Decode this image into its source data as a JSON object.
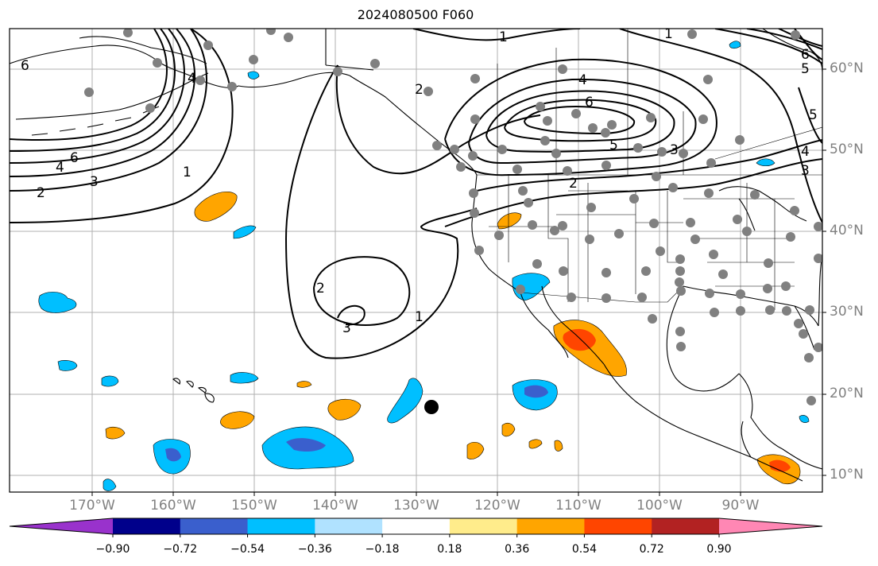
{
  "title": "2024080500 F060",
  "lat_labels": [
    "60°N",
    "50°N",
    "40°N",
    "30°N",
    "20°N",
    "10°N"
  ],
  "lon_labels": [
    "170°W",
    "160°W",
    "150°W",
    "140°W",
    "130°W",
    "120°W",
    "110°W",
    "100°W",
    "90°W"
  ],
  "contour_labels": [
    "1",
    "2",
    "3",
    "4",
    "5",
    "6"
  ],
  "colorbar": {
    "ticks": [
      "−0.90",
      "−0.72",
      "−0.54",
      "−0.36",
      "−0.18",
      "0.18",
      "0.36",
      "0.54",
      "0.72",
      "0.90"
    ],
    "colors": [
      "#9932CC",
      "#00008B",
      "#3A5FCD",
      "#00BFFF",
      "#B0E2FF",
      "#FFFFFF",
      "#FFEC8B",
      "#FFA500",
      "#FF4500",
      "#B22222",
      "#FF87B4"
    ]
  },
  "colors": {
    "grid": "#b0b0b0",
    "contour": "#000000",
    "station_dot": "#808080",
    "marker": "#000000"
  }
}
